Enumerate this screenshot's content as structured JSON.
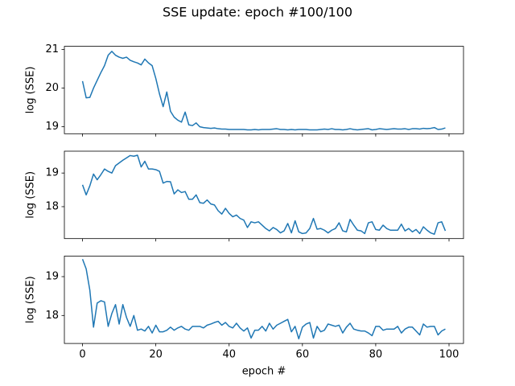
{
  "title": "SSE update: epoch #100/100",
  "chart_data": [
    {
      "type": "line",
      "ylabel": "log (SSE)",
      "color": "#1f77b4",
      "x": [
        0,
        1,
        2,
        3,
        4,
        5,
        6,
        7,
        8,
        9,
        10,
        11,
        12,
        13,
        14,
        15,
        16,
        17,
        18,
        19,
        20,
        21,
        22,
        23,
        24,
        25,
        26,
        27,
        28,
        29,
        30,
        31,
        32,
        33,
        34,
        35,
        36,
        37,
        38,
        39,
        40,
        41,
        42,
        43,
        44,
        45,
        46,
        47,
        48,
        49,
        50,
        51,
        52,
        53,
        54,
        55,
        56,
        57,
        58,
        59,
        60,
        61,
        62,
        63,
        64,
        65,
        66,
        67,
        68,
        69,
        70,
        71,
        72,
        73,
        74,
        75,
        76,
        77,
        78,
        79,
        80,
        81,
        82,
        83,
        84,
        85,
        86,
        87,
        88,
        89,
        90,
        91,
        92,
        93,
        94,
        95,
        96,
        97,
        98,
        99
      ],
      "values": [
        20.18,
        19.75,
        19.76,
        20.0,
        20.2,
        20.4,
        20.58,
        20.85,
        20.95,
        20.85,
        20.8,
        20.77,
        20.8,
        20.72,
        20.68,
        20.65,
        20.6,
        20.75,
        20.65,
        20.58,
        20.25,
        19.85,
        19.52,
        19.9,
        19.4,
        19.25,
        19.17,
        19.12,
        19.38,
        19.05,
        19.03,
        19.1,
        19.0,
        18.98,
        18.97,
        18.96,
        18.97,
        18.95,
        18.94,
        18.94,
        18.93,
        18.93,
        18.93,
        18.93,
        18.93,
        18.92,
        18.92,
        18.93,
        18.92,
        18.93,
        18.93,
        18.93,
        18.94,
        18.95,
        18.93,
        18.93,
        18.92,
        18.93,
        18.92,
        18.93,
        18.93,
        18.93,
        18.92,
        18.92,
        18.92,
        18.93,
        18.94,
        18.93,
        18.95,
        18.93,
        18.93,
        18.92,
        18.93,
        18.95,
        18.93,
        18.92,
        18.93,
        18.94,
        18.95,
        18.92,
        18.93,
        18.95,
        18.94,
        18.93,
        18.94,
        18.95,
        18.94,
        18.94,
        18.95,
        18.93,
        18.95,
        18.95,
        18.94,
        18.96,
        18.95,
        18.96,
        18.98,
        18.93,
        18.94,
        18.97
      ],
      "xlim": [
        -4.95,
        103.95
      ],
      "xticks": [
        0,
        20,
        40,
        60,
        80,
        100
      ],
      "xtick_labels": false,
      "ylim": [
        18.82,
        21.08
      ],
      "yticks": [
        19,
        20,
        21
      ]
    },
    {
      "type": "line",
      "ylabel": "log (SSE)",
      "color": "#1f77b4",
      "x": [
        0,
        1,
        2,
        3,
        4,
        5,
        6,
        7,
        8,
        9,
        10,
        11,
        12,
        13,
        14,
        15,
        16,
        17,
        18,
        19,
        20,
        21,
        22,
        23,
        24,
        25,
        26,
        27,
        28,
        29,
        30,
        31,
        32,
        33,
        34,
        35,
        36,
        37,
        38,
        39,
        40,
        41,
        42,
        43,
        44,
        45,
        46,
        47,
        48,
        49,
        50,
        51,
        52,
        53,
        54,
        55,
        56,
        57,
        58,
        59,
        60,
        61,
        62,
        63,
        64,
        65,
        66,
        67,
        68,
        69,
        70,
        71,
        72,
        73,
        74,
        75,
        76,
        77,
        78,
        79,
        80,
        81,
        82,
        83,
        84,
        85,
        86,
        87,
        88,
        89,
        90,
        91,
        92,
        93,
        94,
        95,
        96,
        97,
        98,
        99
      ],
      "values": [
        18.65,
        18.35,
        18.62,
        18.97,
        18.8,
        18.95,
        19.12,
        19.05,
        19.0,
        19.22,
        19.3,
        19.38,
        19.45,
        19.52,
        19.5,
        19.53,
        19.18,
        19.35,
        19.12,
        19.12,
        19.1,
        19.05,
        18.7,
        18.75,
        18.74,
        18.38,
        18.5,
        18.42,
        18.45,
        18.22,
        18.22,
        18.35,
        18.12,
        18.1,
        18.2,
        18.08,
        18.05,
        17.88,
        17.78,
        17.95,
        17.8,
        17.7,
        17.75,
        17.65,
        17.6,
        17.38,
        17.55,
        17.52,
        17.55,
        17.45,
        17.35,
        17.28,
        17.38,
        17.32,
        17.22,
        17.28,
        17.5,
        17.22,
        17.58,
        17.25,
        17.2,
        17.22,
        17.35,
        17.65,
        17.33,
        17.35,
        17.3,
        17.22,
        17.3,
        17.35,
        17.52,
        17.28,
        17.25,
        17.62,
        17.45,
        17.3,
        17.28,
        17.2,
        17.52,
        17.55,
        17.32,
        17.3,
        17.45,
        17.35,
        17.3,
        17.3,
        17.3,
        17.48,
        17.28,
        17.35,
        17.25,
        17.32,
        17.2,
        17.4,
        17.3,
        17.22,
        17.18,
        17.52,
        17.55,
        17.28
      ],
      "xlim": [
        -4.95,
        103.95
      ],
      "xticks": [
        0,
        20,
        40,
        60,
        80,
        100
      ],
      "xtick_labels": false,
      "ylim": [
        17.05,
        19.65
      ],
      "yticks": [
        18,
        19
      ]
    },
    {
      "type": "line",
      "ylabel": "log (SSE)",
      "xlabel": "epoch #",
      "color": "#1f77b4",
      "x": [
        0,
        1,
        2,
        3,
        4,
        5,
        6,
        7,
        8,
        9,
        10,
        11,
        12,
        13,
        14,
        15,
        16,
        17,
        18,
        19,
        20,
        21,
        22,
        23,
        24,
        25,
        26,
        27,
        28,
        29,
        30,
        31,
        32,
        33,
        34,
        35,
        36,
        37,
        38,
        39,
        40,
        41,
        42,
        43,
        44,
        45,
        46,
        47,
        48,
        49,
        50,
        51,
        52,
        53,
        54,
        55,
        56,
        57,
        58,
        59,
        60,
        61,
        62,
        63,
        64,
        65,
        66,
        67,
        68,
        69,
        70,
        71,
        72,
        73,
        74,
        75,
        76,
        77,
        78,
        79,
        80,
        81,
        82,
        83,
        84,
        85,
        86,
        87,
        88,
        89,
        90,
        91,
        92,
        93,
        94,
        95,
        96,
        97,
        98,
        99
      ],
      "values": [
        19.45,
        19.2,
        18.65,
        17.7,
        18.32,
        18.38,
        18.35,
        17.72,
        18.05,
        18.28,
        17.78,
        18.28,
        17.95,
        17.72,
        18.0,
        17.62,
        17.65,
        17.6,
        17.72,
        17.55,
        17.75,
        17.58,
        17.58,
        17.62,
        17.7,
        17.62,
        17.68,
        17.72,
        17.65,
        17.62,
        17.72,
        17.72,
        17.72,
        17.68,
        17.75,
        17.78,
        17.82,
        17.85,
        17.75,
        17.82,
        17.72,
        17.68,
        17.8,
        17.68,
        17.6,
        17.68,
        17.42,
        17.62,
        17.62,
        17.72,
        17.6,
        17.8,
        17.65,
        17.75,
        17.8,
        17.85,
        17.9,
        17.58,
        17.72,
        17.4,
        17.7,
        17.78,
        17.82,
        17.42,
        17.72,
        17.58,
        17.62,
        17.78,
        17.75,
        17.72,
        17.75,
        17.55,
        17.7,
        17.8,
        17.65,
        17.62,
        17.6,
        17.6,
        17.55,
        17.48,
        17.72,
        17.72,
        17.62,
        17.65,
        17.65,
        17.65,
        17.72,
        17.55,
        17.65,
        17.7,
        17.7,
        17.6,
        17.5,
        17.78,
        17.7,
        17.72,
        17.72,
        17.5,
        17.6,
        17.65
      ],
      "xlim": [
        -4.95,
        103.95
      ],
      "xticks": [
        0,
        20,
        40,
        60,
        80,
        100
      ],
      "xtick_labels": true,
      "ylim": [
        17.28,
        19.53
      ],
      "yticks": [
        18,
        19
      ]
    }
  ]
}
